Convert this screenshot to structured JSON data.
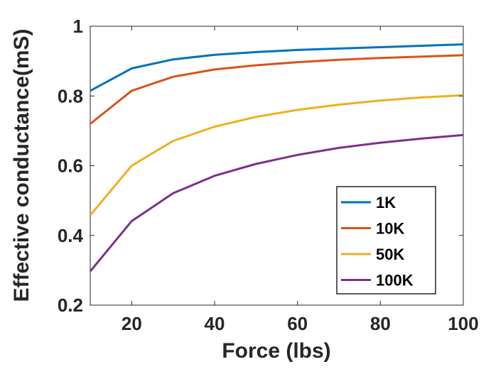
{
  "chart_data": {
    "type": "line",
    "title": "",
    "xlabel": "Force (lbs)",
    "ylabel": "Effective conductance(mS)",
    "xlim": [
      10,
      100
    ],
    "ylim": [
      0.2,
      1.0
    ],
    "xticks": [
      20,
      40,
      60,
      80,
      100
    ],
    "yticks": [
      0.2,
      0.4,
      0.6,
      0.8,
      1.0
    ],
    "xtick_labels": [
      "20",
      "40",
      "60",
      "80",
      "100"
    ],
    "ytick_labels": [
      "0.2",
      "0.4",
      "0.6",
      "0.8",
      "1"
    ],
    "grid": false,
    "legend_position": "bottom-right",
    "x": [
      10,
      20,
      30,
      40,
      50,
      60,
      70,
      80,
      90,
      100
    ],
    "series": [
      {
        "name": "1K",
        "color": "#0072BD",
        "values": [
          0.815,
          0.879,
          0.905,
          0.918,
          0.926,
          0.932,
          0.936,
          0.94,
          0.944,
          0.948
        ]
      },
      {
        "name": "10K",
        "color": "#D95319",
        "values": [
          0.72,
          0.815,
          0.855,
          0.876,
          0.888,
          0.897,
          0.904,
          0.909,
          0.913,
          0.917
        ]
      },
      {
        "name": "50K",
        "color": "#EDB120",
        "values": [
          0.458,
          0.6,
          0.671,
          0.712,
          0.74,
          0.76,
          0.775,
          0.787,
          0.796,
          0.802
        ]
      },
      {
        "name": "100K",
        "color": "#7E2F8E",
        "values": [
          0.297,
          0.441,
          0.521,
          0.571,
          0.605,
          0.631,
          0.651,
          0.666,
          0.678,
          0.688
        ]
      }
    ]
  }
}
